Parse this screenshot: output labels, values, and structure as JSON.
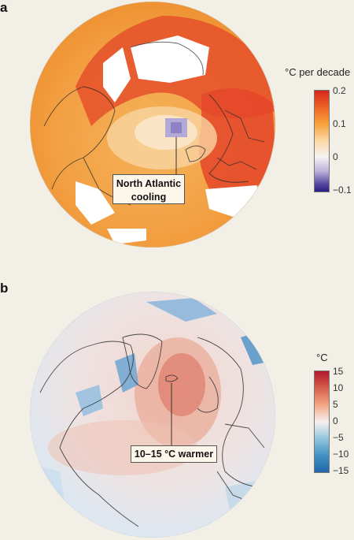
{
  "panel_a": {
    "letter": "a",
    "colorbar": {
      "title": "°C per decade",
      "ticks": [
        "0.2",
        "0.1",
        "0",
        "−0.1"
      ],
      "min": -0.1,
      "max": 0.2,
      "colors": [
        "#2a1e82",
        "#b9b1d9",
        "#f4f2f4",
        "#fbd9a6",
        "#f7a13c",
        "#ee6a27",
        "#d7261f"
      ]
    },
    "callout": [
      "North Atlantic",
      "cooling"
    ]
  },
  "panel_b": {
    "letter": "b",
    "colorbar": {
      "title": "°C",
      "ticks": [
        "15",
        "10",
        "5",
        "0",
        "−5",
        "−10",
        "−15"
      ],
      "min": -15,
      "max": 15,
      "colors": [
        "#2166ac",
        "#4393c3",
        "#92c5de",
        "#f7f0ee",
        "#f4a582",
        "#d6604d",
        "#b2182b"
      ]
    },
    "callout": "10–15 °C warmer"
  }
}
